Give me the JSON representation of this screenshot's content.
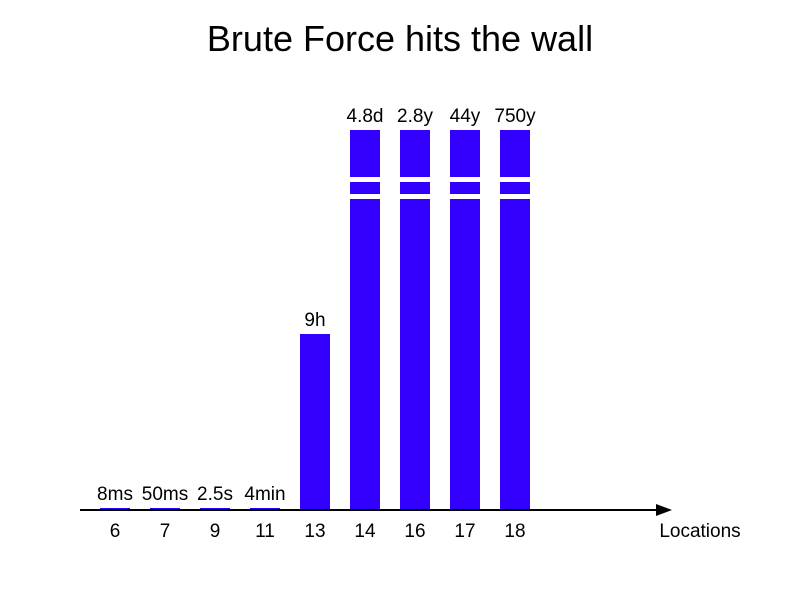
{
  "chart_data": {
    "type": "bar",
    "title": "Brute Force hits the wall",
    "xlabel": "Locations",
    "ylabel": "",
    "categories": [
      "6",
      "7",
      "9",
      "11",
      "13",
      "14",
      "16",
      "17",
      "18"
    ],
    "value_labels": [
      "8ms",
      "50ms",
      "2.5s",
      "4min",
      "9h",
      "4.8d",
      "2.8y",
      "44y",
      "750y"
    ],
    "values_seconds": [
      0.008,
      0.05,
      2.5,
      240,
      32400,
      414720,
      88300800,
      1387584000,
      23652000000
    ],
    "clipped": [
      false,
      false,
      false,
      false,
      false,
      true,
      true,
      true,
      true
    ],
    "grid": false,
    "legend": "none",
    "colors": {
      "bar": "#3300ff",
      "axis": "#000000"
    }
  }
}
